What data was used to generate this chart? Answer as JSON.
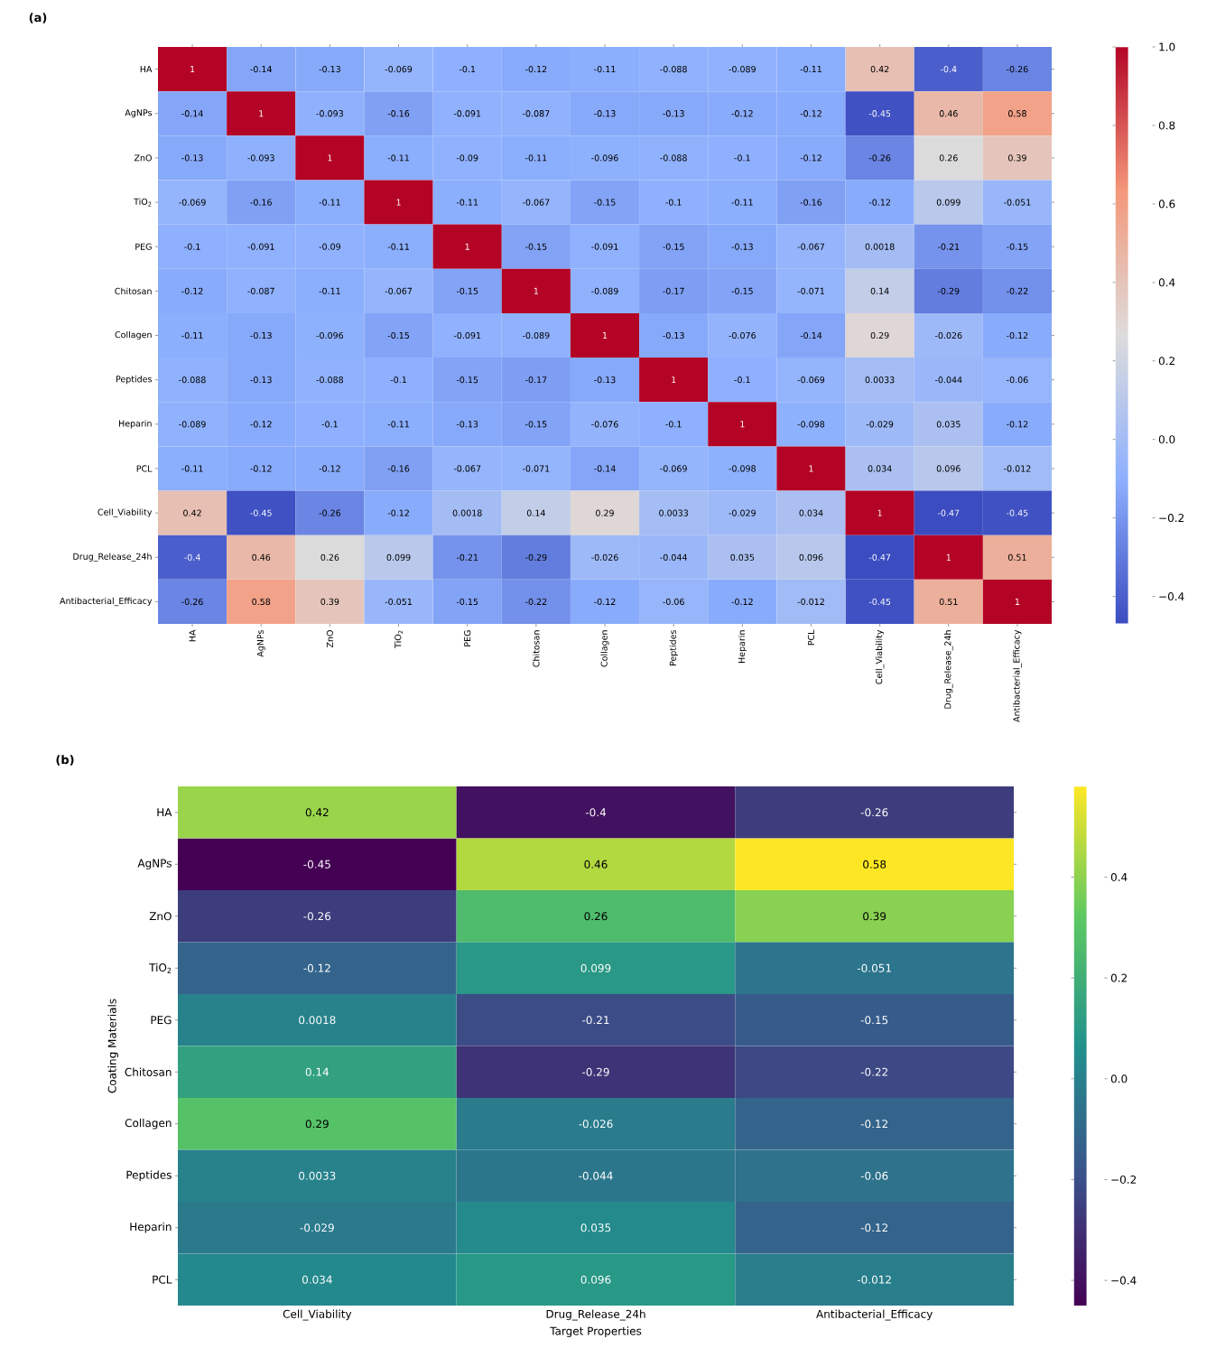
{
  "chart_data": [
    {
      "type": "heatmap",
      "title": "(a)",
      "categories": [
        "HA",
        "AgNPs",
        "ZnO",
        "TiO$_{2}$",
        "PEG",
        "Chitosan",
        "Collagen",
        "Peptides",
        "Heparin",
        "PCL",
        "Cell_Viability",
        "Drug_Release_24h",
        "Antibacterial_Efficacy"
      ],
      "y_categories": [
        "HA",
        "AgNPs",
        "ZnO",
        "TiO$_{2}$",
        "PEG",
        "Chitosan",
        "Collagen",
        "Peptides",
        "Heparin",
        "PCL",
        "Cell_Viability",
        "Drug_Release_24h",
        "Antibacterial_Efficacy"
      ],
      "cells": [
        [
          1,
          -0.14,
          -0.13,
          -0.069,
          -0.1,
          -0.12,
          -0.11,
          -0.088,
          -0.089,
          -0.11,
          0.42,
          -0.4,
          -0.26
        ],
        [
          -0.14,
          1,
          -0.093,
          -0.16,
          -0.091,
          -0.087,
          -0.13,
          -0.13,
          -0.12,
          -0.12,
          -0.45,
          0.46,
          0.58
        ],
        [
          -0.13,
          -0.093,
          1,
          -0.11,
          -0.09,
          -0.11,
          -0.096,
          -0.088,
          -0.1,
          -0.12,
          -0.26,
          0.26,
          0.39
        ],
        [
          -0.069,
          -0.16,
          -0.11,
          1,
          -0.11,
          -0.067,
          -0.15,
          -0.1,
          -0.11,
          -0.16,
          -0.12,
          0.099,
          -0.051
        ],
        [
          -0.1,
          -0.091,
          -0.09,
          -0.11,
          1,
          -0.15,
          -0.091,
          -0.15,
          -0.13,
          -0.067,
          0.0018,
          -0.21,
          -0.15
        ],
        [
          -0.12,
          -0.087,
          -0.11,
          -0.067,
          -0.15,
          1,
          -0.089,
          -0.17,
          -0.15,
          -0.071,
          0.14,
          -0.29,
          -0.22
        ],
        [
          -0.11,
          -0.13,
          -0.096,
          -0.15,
          -0.091,
          -0.089,
          1,
          -0.13,
          -0.076,
          -0.14,
          0.29,
          -0.026,
          -0.12
        ],
        [
          -0.088,
          -0.13,
          -0.088,
          -0.1,
          -0.15,
          -0.17,
          -0.13,
          1,
          -0.1,
          -0.069,
          0.0033,
          -0.044,
          -0.06
        ],
        [
          -0.089,
          -0.12,
          -0.1,
          -0.11,
          -0.13,
          -0.15,
          -0.076,
          -0.1,
          1,
          -0.098,
          -0.029,
          0.035,
          -0.12
        ],
        [
          -0.11,
          -0.12,
          -0.12,
          -0.16,
          -0.067,
          -0.071,
          -0.14,
          -0.069,
          -0.098,
          1,
          0.034,
          0.096,
          -0.012
        ],
        [
          0.42,
          -0.45,
          -0.26,
          -0.12,
          0.0018,
          0.14,
          0.29,
          0.0033,
          -0.029,
          0.034,
          1,
          -0.47,
          -0.45
        ],
        [
          -0.4,
          0.46,
          0.26,
          0.099,
          -0.21,
          -0.29,
          -0.026,
          -0.044,
          0.035,
          0.096,
          -0.47,
          1,
          0.51
        ],
        [
          -0.26,
          0.58,
          0.39,
          -0.051,
          -0.15,
          -0.22,
          -0.12,
          -0.06,
          -0.12,
          -0.012,
          -0.45,
          0.51,
          1
        ]
      ],
      "data_labels": true,
      "clim": [
        -0.47,
        1.0
      ],
      "cticks": [
        {
          "value": -0.4,
          "label": "−0.4"
        },
        {
          "value": -0.2,
          "label": "−0.2"
        },
        {
          "value": 0,
          "label": "0.0"
        },
        0.2,
        0.4,
        0.6,
        0.8,
        {
          "value": 1,
          "label": "1.0"
        }
      ]
    },
    {
      "type": "heatmap",
      "title": "(b)",
      "xlabel": "Target Properties",
      "ylabel": "Coating Materials",
      "categories": [
        "Cell_Viability",
        "Drug_Release_24h",
        "Antibacterial_Efficacy"
      ],
      "y_categories": [
        "HA",
        "AgNPs",
        "ZnO",
        "TiO$_{2}$",
        "PEG",
        "Chitosan",
        "Collagen",
        "Peptides",
        "Heparin",
        "PCL"
      ],
      "cells": [
        [
          0.42,
          -0.4,
          -0.26
        ],
        [
          -0.45,
          0.46,
          0.58
        ],
        [
          -0.26,
          0.26,
          0.39
        ],
        [
          -0.12,
          0.099,
          -0.051
        ],
        [
          0.0018,
          -0.21,
          -0.15
        ],
        [
          0.14,
          -0.29,
          -0.22
        ],
        [
          0.29,
          -0.026,
          -0.12
        ],
        [
          0.0033,
          -0.044,
          -0.06
        ],
        [
          -0.029,
          0.035,
          -0.12
        ],
        [
          0.034,
          0.096,
          -0.012
        ]
      ],
      "data_labels": true,
      "clim": [
        -0.45,
        0.58
      ],
      "cticks": [
        {
          "value": -0.4,
          "label": "−0.4"
        },
        {
          "value": -0.2,
          "label": "−0.2"
        },
        {
          "value": 0,
          "label": "0.0"
        },
        0.2,
        0.4
      ]
    }
  ]
}
